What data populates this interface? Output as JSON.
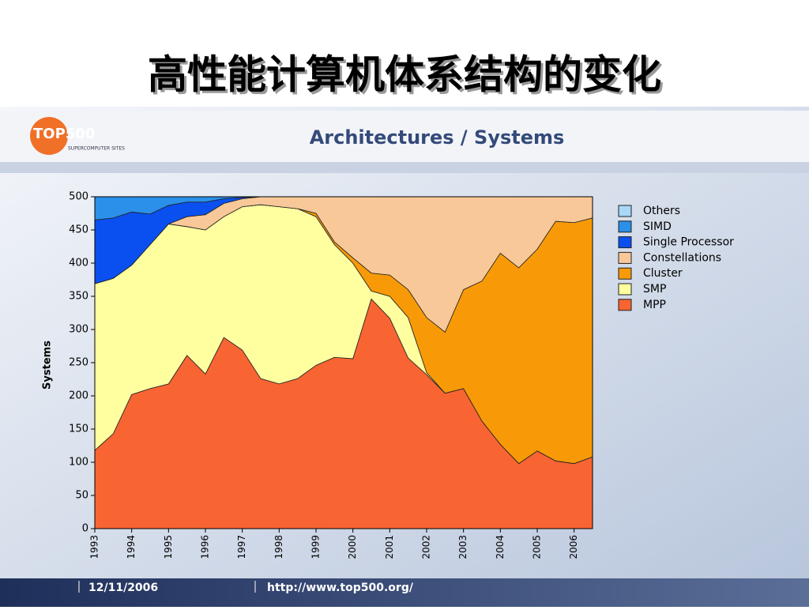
{
  "slide_title": "高性能计算机体系结构的变化",
  "logo": {
    "name": "TOP500",
    "tagline": "SUPERCOMPUTER SITES"
  },
  "footer": {
    "date": "12/11/2006",
    "url": "http://www.top500.org/"
  },
  "chart_data": {
    "type": "stacked-area",
    "title": "Architectures / Systems",
    "y_label": "Systems",
    "x": [
      1993,
      1993.5,
      1994,
      1994.5,
      1995,
      1995.5,
      1996,
      1996.5,
      1997,
      1997.5,
      1998,
      1998.5,
      1999,
      1999.5,
      2000,
      2000.5,
      2001,
      2001.5,
      2002,
      2002.5,
      2003,
      2003.5,
      2004,
      2004.5,
      2005,
      2005.5,
      2006,
      2006.5
    ],
    "xlim": [
      1993,
      2006.5
    ],
    "xticks": [
      1993,
      1994,
      1995,
      1996,
      1997,
      1998,
      1999,
      2000,
      2001,
      2002,
      2003,
      2004,
      2005,
      2006
    ],
    "ylim": [
      0,
      500
    ],
    "yticks": [
      0,
      50,
      100,
      150,
      200,
      250,
      300,
      350,
      400,
      450,
      500
    ],
    "series": [
      {
        "name": "Others",
        "color": "#a8d8f8",
        "values": [
          0,
          0,
          0,
          0,
          0,
          0,
          0,
          0,
          0,
          0,
          0,
          0,
          0,
          0,
          0,
          0,
          0,
          0,
          0,
          0,
          0,
          0,
          0,
          0,
          0,
          0,
          0,
          0
        ]
      },
      {
        "name": "SIMD",
        "color": "#2a90ea",
        "values": [
          35,
          32,
          23,
          26,
          13,
          8,
          8,
          3,
          1,
          0,
          0,
          0,
          0,
          0,
          0,
          0,
          0,
          0,
          0,
          0,
          0,
          0,
          0,
          0,
          0,
          0,
          0,
          0
        ]
      },
      {
        "name": "Single Processor",
        "color": "#0a50f0",
        "values": [
          96,
          91,
          80,
          46,
          28,
          22,
          19,
          7,
          2,
          0,
          0,
          0,
          0,
          0,
          0,
          0,
          0,
          0,
          0,
          0,
          0,
          0,
          0,
          0,
          0,
          0,
          0,
          0
        ]
      },
      {
        "name": "Constellations",
        "color": "#f8c898",
        "values": [
          0,
          0,
          0,
          0,
          0,
          15,
          23,
          20,
          12,
          12,
          15,
          18,
          25,
          68,
          92,
          115,
          118,
          140,
          182,
          204,
          140,
          127,
          85,
          107,
          79,
          37,
          39,
          32
        ]
      },
      {
        "name": "Cluster",
        "color": "#f89a08",
        "values": [
          0,
          0,
          0,
          0,
          0,
          0,
          0,
          0,
          0,
          0,
          0,
          0,
          5,
          4,
          8,
          27,
          32,
          42,
          83,
          92,
          149,
          211,
          288,
          295,
          304,
          361,
          363,
          360
        ]
      },
      {
        "name": "SMP",
        "color": "#ffffa0",
        "values": [
          251,
          234,
          195,
          217,
          241,
          194,
          217,
          182,
          216,
          262,
          267,
          256,
          224,
          170,
          144,
          12,
          33,
          61,
          3,
          0,
          0,
          0,
          0,
          0,
          0,
          0,
          0,
          0
        ]
      },
      {
        "name": "MPP",
        "color": "#f86432",
        "values": [
          118,
          143,
          202,
          211,
          218,
          261,
          233,
          288,
          269,
          226,
          218,
          226,
          246,
          258,
          256,
          346,
          317,
          257,
          232,
          204,
          211,
          162,
          127,
          98,
          117,
          102,
          98,
          108
        ]
      }
    ]
  }
}
